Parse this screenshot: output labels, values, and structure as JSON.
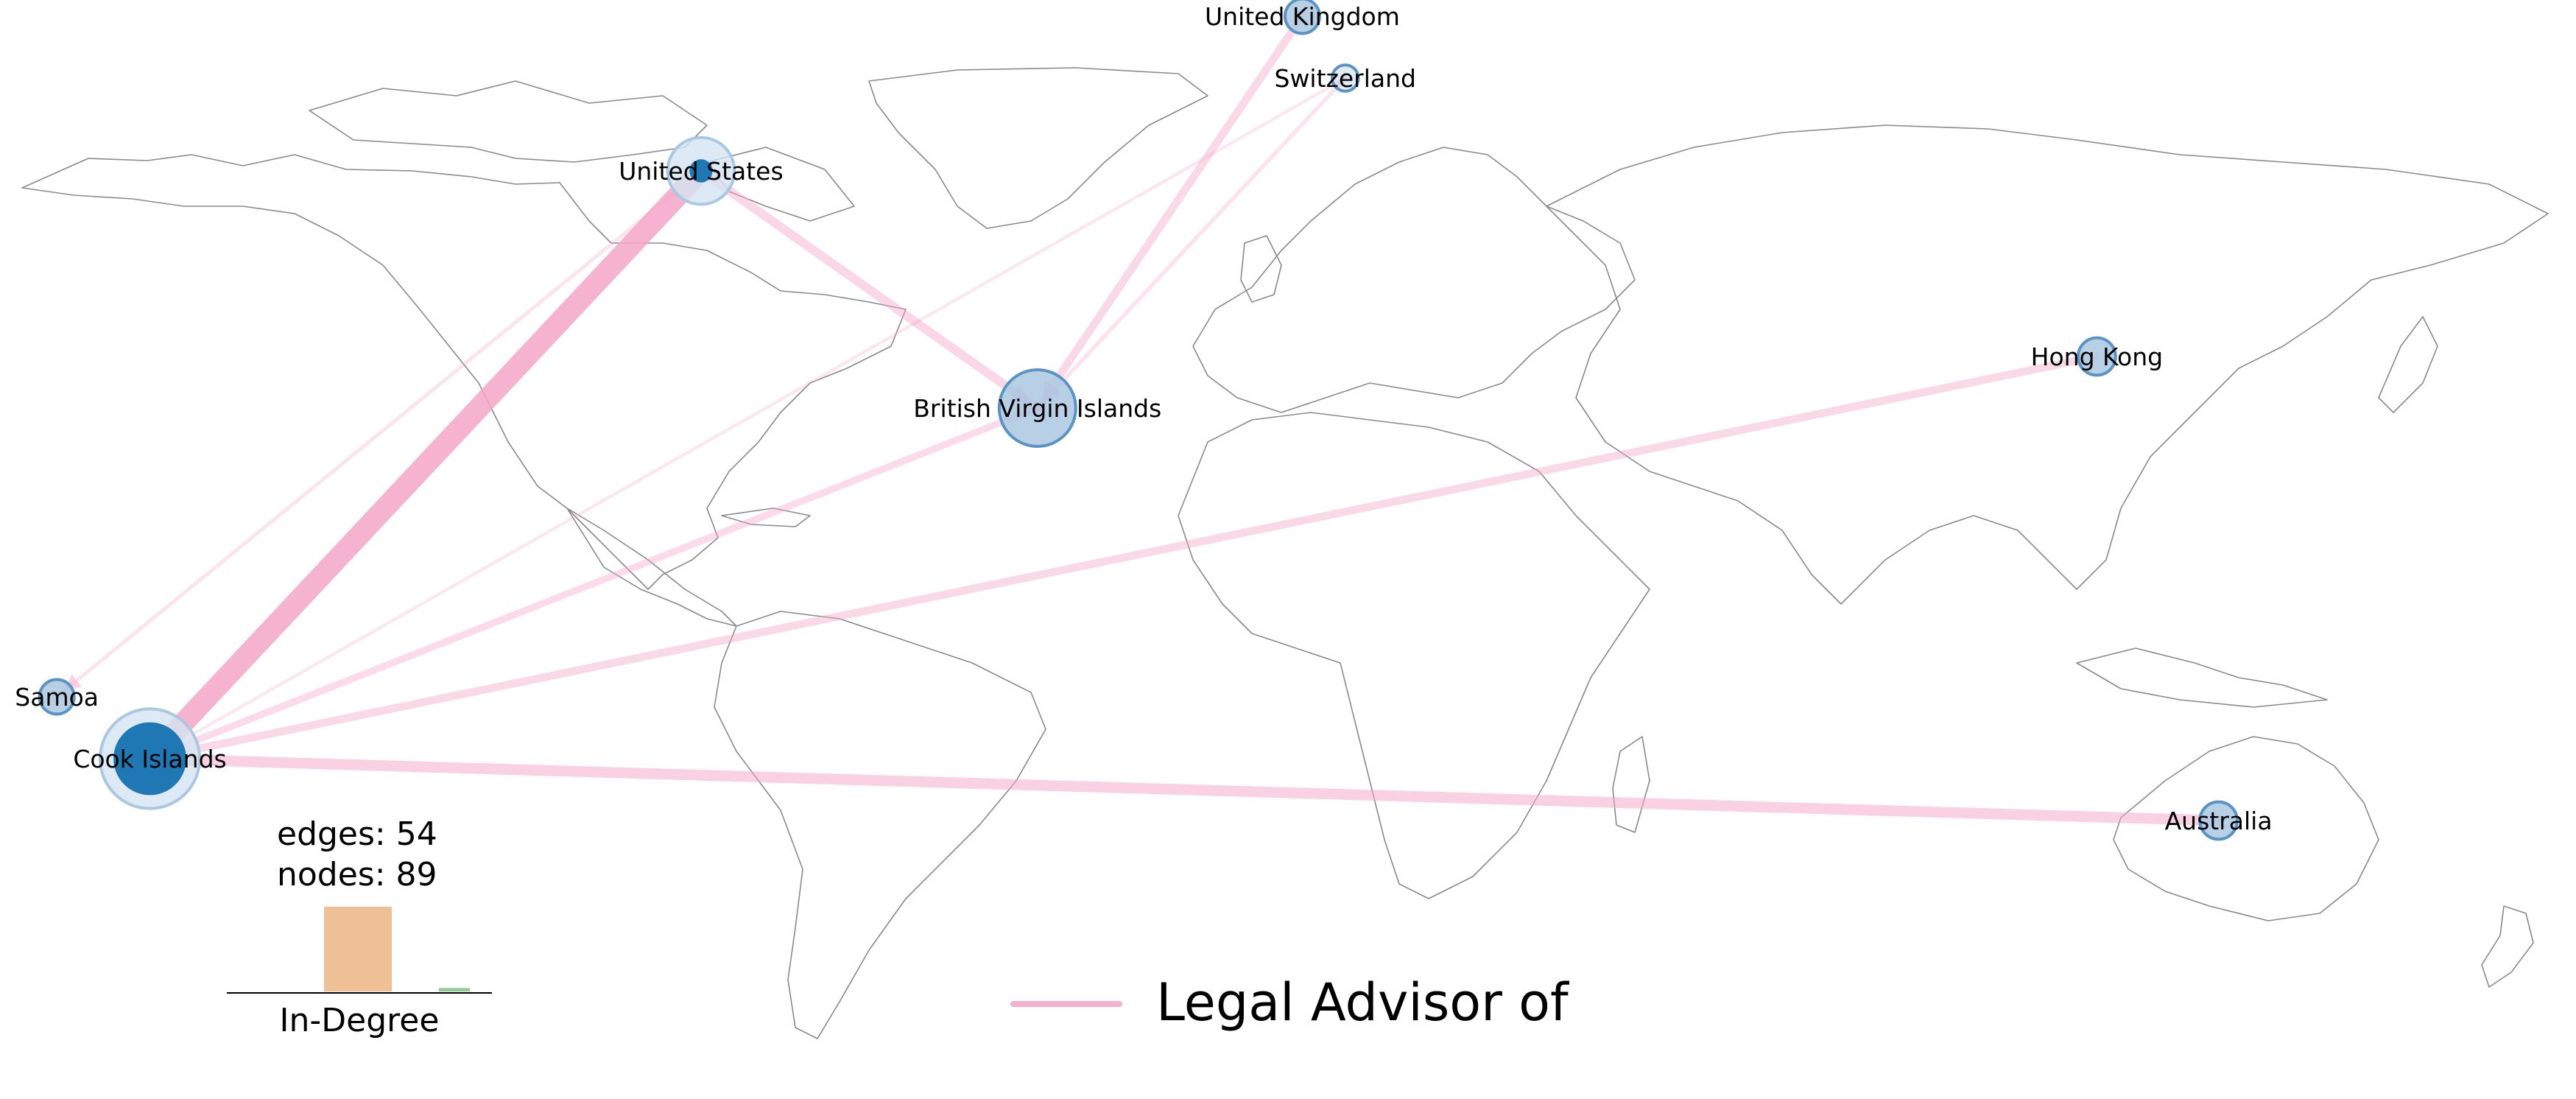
{
  "stats": {
    "edges_label": "edges: 54",
    "nodes_label": "nodes: 89"
  },
  "histogram": {
    "xlabel": "In-Degree",
    "bars": [
      {
        "relative_height": 1.0,
        "color": "#efbf95"
      },
      {
        "relative_height": 0.04,
        "color": "#8fcc8f"
      }
    ]
  },
  "legend": {
    "label": "Legal Advisor of",
    "color": "#f4b0cf"
  },
  "colors": {
    "edge": "#f4a6c8",
    "node_dark": "#1f77b4",
    "node_light": "#aac8e2",
    "node_halo": "#d4e3f1",
    "map_stroke": "#8a8a8a"
  },
  "nodes": [
    {
      "id": "us",
      "label": "United States",
      "lon": -82,
      "lat": 37,
      "weight": 0.55,
      "halo": true
    },
    {
      "id": "bvi",
      "label": "British Virgin Islands",
      "lon": -35,
      "lat": 14,
      "weight": 1.0,
      "halo": false
    },
    {
      "id": "ci",
      "label": "Cook Islands",
      "lon": -159,
      "lat": -20,
      "weight": 1.0,
      "halo": true
    },
    {
      "id": "sam",
      "label": "Samoa",
      "lon": -172,
      "lat": -14,
      "weight": 0.25,
      "halo": false
    },
    {
      "id": "uk",
      "label": "United Kingdom",
      "lon": 2,
      "lat": 52,
      "weight": 0.25,
      "halo": false
    },
    {
      "id": "ch",
      "label": "Switzerland",
      "lon": 8,
      "lat": 46,
      "weight": 0.1,
      "halo": false
    },
    {
      "id": "hk",
      "label": "Hong Kong",
      "lon": 113,
      "lat": 19,
      "weight": 0.3,
      "halo": false
    },
    {
      "id": "au",
      "label": "Australia",
      "lon": 130,
      "lat": -26,
      "weight": 0.3,
      "halo": false
    }
  ],
  "edges": [
    {
      "from": "us",
      "to": "ci",
      "weight": 1.0
    },
    {
      "from": "us",
      "to": "bvi",
      "weight": 0.35
    },
    {
      "from": "uk",
      "to": "bvi",
      "weight": 0.3
    },
    {
      "from": "ch",
      "to": "bvi",
      "weight": 0.1
    },
    {
      "from": "bvi",
      "to": "ci",
      "weight": 0.25
    },
    {
      "from": "hk",
      "to": "ci",
      "weight": 0.3
    },
    {
      "from": "au",
      "to": "ci",
      "weight": 0.45
    },
    {
      "from": "us",
      "to": "sam",
      "weight": 0.08
    },
    {
      "from": "ch",
      "to": "ci",
      "weight": 0.05
    },
    {
      "from": "us",
      "to": "us",
      "weight": 0.1
    }
  ]
}
